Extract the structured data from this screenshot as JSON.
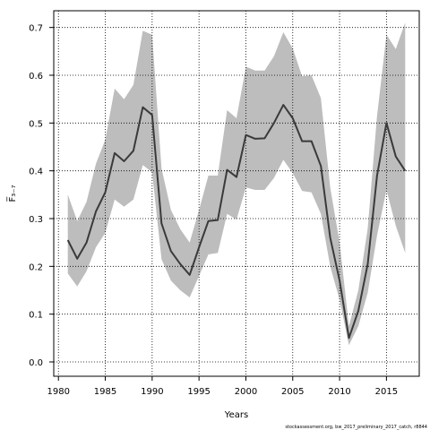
{
  "chart_data": {
    "type": "line",
    "title": "",
    "xlabel": "Years",
    "ylabel": "F̅₃₋₇",
    "xlim": [
      1979.5,
      2018.5
    ],
    "ylim": [
      -0.03,
      0.735
    ],
    "x_ticks": [
      1980,
      1985,
      1990,
      1995,
      2000,
      2005,
      2010,
      2015
    ],
    "x_tick_labels": [
      "1980",
      "1985",
      "1990",
      "1995",
      "2000",
      "2005",
      "2010",
      "2015"
    ],
    "y_ticks": [
      0.0,
      0.1,
      0.2,
      0.3,
      0.4,
      0.5,
      0.6,
      0.7
    ],
    "y_tick_labels": [
      "0.0",
      "0.1",
      "0.2",
      "0.3",
      "0.4",
      "0.5",
      "0.6",
      "0.7"
    ],
    "grid": true,
    "legend": "none",
    "colors": {
      "line": "#3a3a3a",
      "band": "#bdbdbd",
      "grid": "#000000",
      "axis": "#000000"
    },
    "x": [
      1981,
      1982,
      1983,
      1984,
      1985,
      1986,
      1987,
      1988,
      1989,
      1990,
      1991,
      1992,
      1993,
      1994,
      1995,
      1996,
      1997,
      1998,
      1999,
      2000,
      2001,
      2002,
      2003,
      2004,
      2005,
      2006,
      2007,
      2008,
      2009,
      2010,
      2011,
      2012,
      2013,
      2014,
      2015,
      2016,
      2017
    ],
    "series": [
      {
        "values": [
          0.255,
          0.216,
          0.25,
          0.315,
          0.355,
          0.437,
          0.42,
          0.442,
          0.533,
          0.517,
          0.29,
          0.232,
          0.205,
          0.182,
          0.24,
          0.295,
          0.297,
          0.402,
          0.387,
          0.475,
          0.467,
          0.468,
          0.5,
          0.538,
          0.51,
          0.462,
          0.462,
          0.41,
          0.26,
          0.17,
          0.05,
          0.107,
          0.205,
          0.39,
          0.5,
          0.43,
          0.4
        ]
      }
    ],
    "confidence_band": {
      "lower": [
        0.185,
        0.158,
        0.19,
        0.24,
        0.27,
        0.34,
        0.325,
        0.34,
        0.412,
        0.397,
        0.215,
        0.17,
        0.15,
        0.135,
        0.18,
        0.225,
        0.228,
        0.31,
        0.298,
        0.365,
        0.36,
        0.36,
        0.385,
        0.423,
        0.395,
        0.358,
        0.355,
        0.31,
        0.2,
        0.13,
        0.035,
        0.075,
        0.145,
        0.265,
        0.36,
        0.285,
        0.228
      ],
      "upper": [
        0.35,
        0.295,
        0.335,
        0.415,
        0.465,
        0.572,
        0.55,
        0.58,
        0.693,
        0.685,
        0.405,
        0.318,
        0.278,
        0.25,
        0.318,
        0.39,
        0.39,
        0.527,
        0.51,
        0.618,
        0.61,
        0.61,
        0.64,
        0.69,
        0.656,
        0.598,
        0.6,
        0.552,
        0.365,
        0.25,
        0.075,
        0.15,
        0.28,
        0.515,
        0.685,
        0.655,
        0.71
      ]
    }
  },
  "footer": {
    "source_note": "stockassessment.org, bw_2017_preliminary_2017_catch, r8844"
  }
}
